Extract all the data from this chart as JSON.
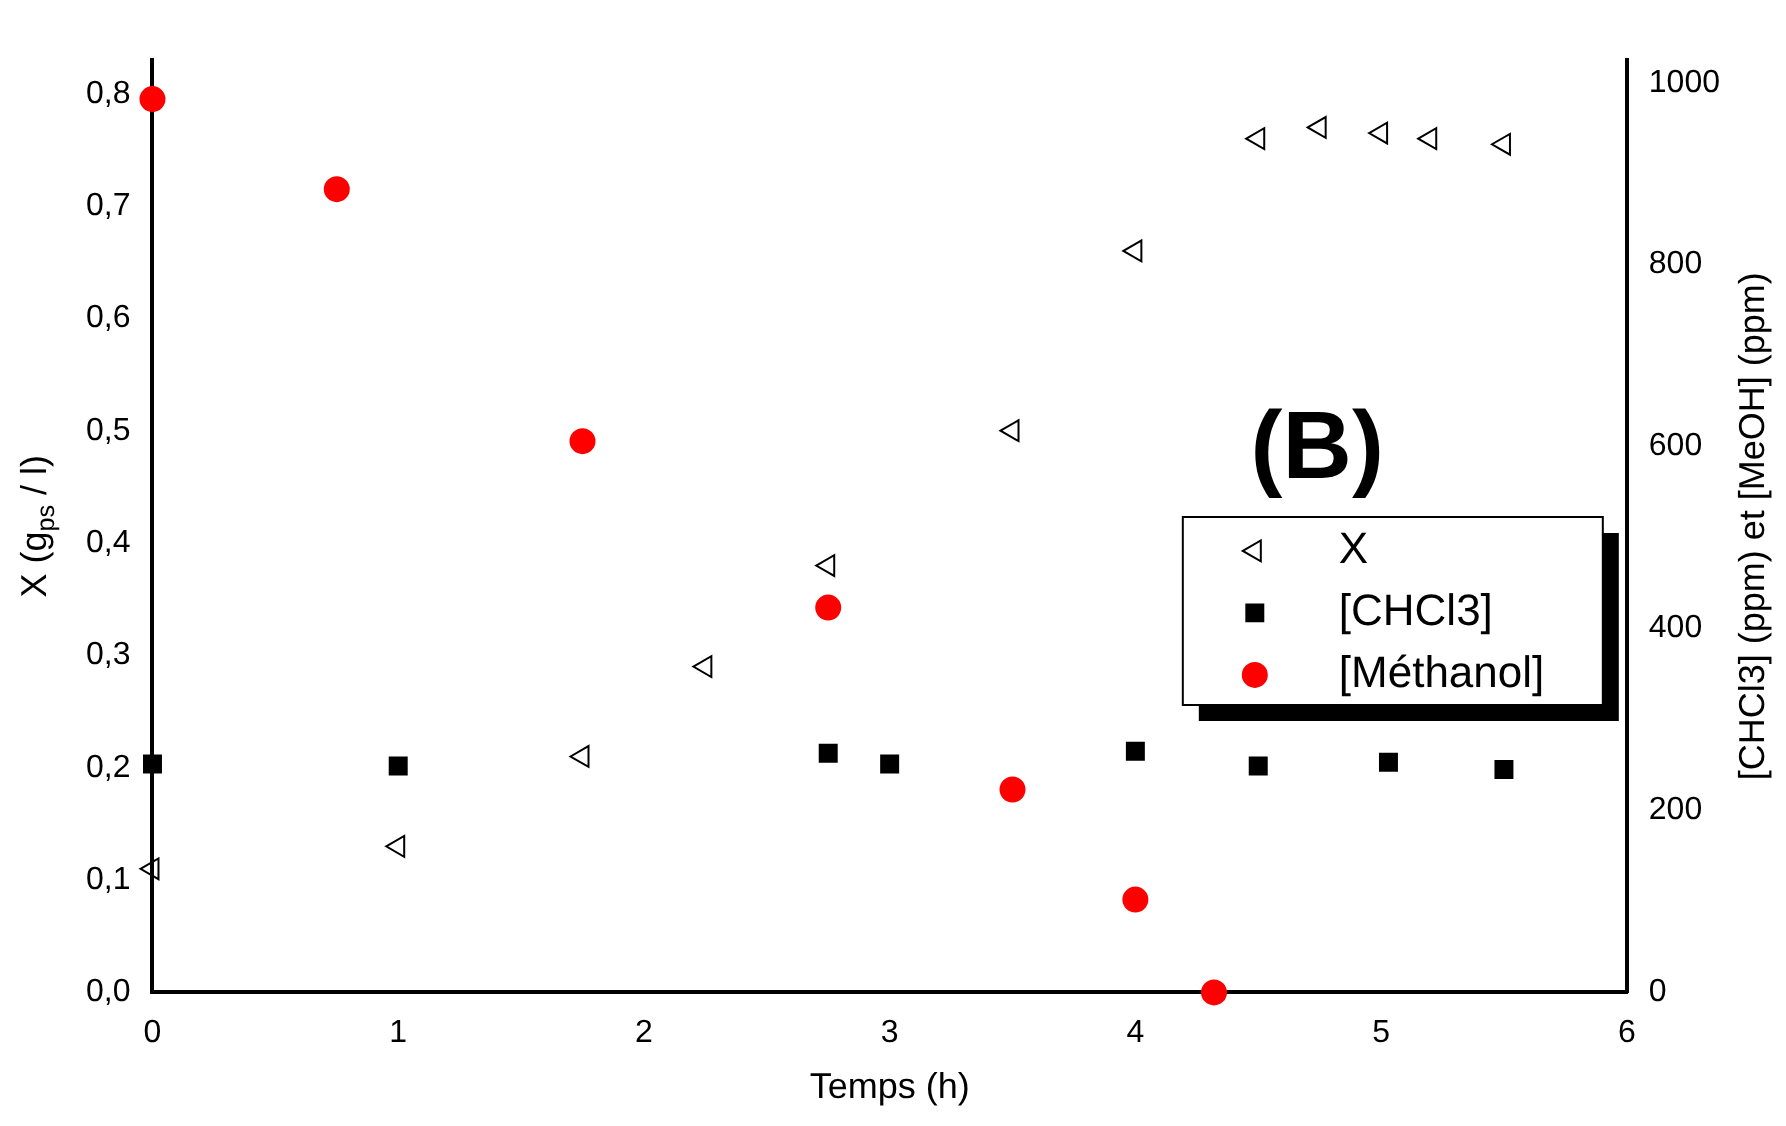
{
  "chart_data": {
    "type": "scatter",
    "xlabel": "Temps (h)",
    "ylabel": "X (g$_{ps}$ / l)",
    "y2label": "[CHCl3] (ppm) et [MeOH] (ppm)",
    "annotations": [
      "(B)"
    ],
    "xlim": [
      0,
      6
    ],
    "xticks": [
      0,
      1,
      2,
      3,
      4,
      5,
      6
    ],
    "ylim": [
      0,
      0.83
    ],
    "yticks": [
      {
        "value": 0,
        "label": "0,0"
      },
      {
        "value": 0.1,
        "label": "0,1"
      },
      {
        "value": 0.2,
        "label": "0,2"
      },
      {
        "value": 0.3,
        "label": "0,3"
      },
      {
        "value": 0.4,
        "label": "0,4"
      },
      {
        "value": 0.5,
        "label": "0,5"
      },
      {
        "value": 0.6,
        "label": "0,6"
      },
      {
        "value": 0.7,
        "label": "0,7"
      },
      {
        "value": 0.8,
        "label": "0,8"
      }
    ],
    "y2lim": [
      0,
      1025
    ],
    "y2ticks": [
      0,
      200,
      400,
      600,
      800,
      1000
    ],
    "grid": false,
    "legend": "right",
    "series": [
      {
        "name": "X",
        "color": "#000000",
        "marker": "triangle",
        "x": [
          0,
          1,
          1.75,
          2.25,
          2.75,
          3.5,
          4,
          4.5,
          4.75,
          5,
          5.2,
          5.5
        ],
        "values": [
          0.11,
          0.13,
          0.21,
          0.29,
          0.38,
          0.5,
          0.66,
          0.76,
          0.77,
          0.765,
          0.76,
          0.755
        ]
      },
      {
        "name": "[CHCl3]",
        "color": "#000000",
        "marker": "square",
        "axis": "y2",
        "x": [
          0,
          1,
          2.75,
          3,
          4,
          4.5,
          5.03,
          5.5
        ],
        "values": [
          251,
          249,
          263,
          251,
          265,
          249,
          253,
          245
        ]
      },
      {
        "name": "[Méthanol]",
        "color": "#ff0000",
        "marker": "circle",
        "axis": "y2",
        "x": [
          0,
          0.75,
          1.75,
          2.75,
          3.5,
          4,
          4.32
        ],
        "values": [
          982,
          883,
          606,
          423,
          223,
          102,
          0
        ]
      }
    ]
  }
}
